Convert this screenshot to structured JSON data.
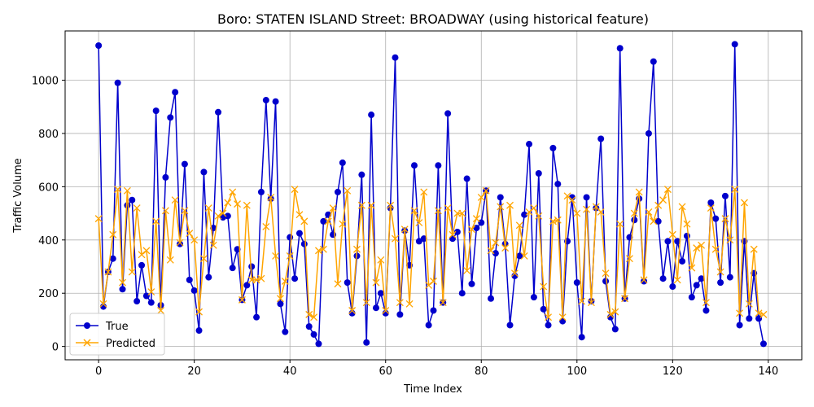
{
  "chart_data": {
    "type": "line",
    "title": "Boro: STATEN ISLAND Street: BROADWAY (using historical feature)",
    "xlabel": "Time Index",
    "ylabel": "Traffic Volume",
    "xlim": [
      -7,
      147
    ],
    "ylim": [
      -50,
      1185
    ],
    "xticks": [
      0,
      20,
      40,
      60,
      80,
      100,
      120,
      140
    ],
    "yticks": [
      0,
      200,
      400,
      600,
      800,
      1000
    ],
    "grid": true,
    "legend_position": "lower-left",
    "series": [
      {
        "name": "True",
        "color": "#0000cc",
        "marker": "circle",
        "values": [
          1130,
          150,
          280,
          330,
          990,
          215,
          530,
          550,
          170,
          305,
          190,
          165,
          885,
          155,
          635,
          860,
          955,
          385,
          685,
          250,
          210,
          60,
          655,
          260,
          445,
          880,
          485,
          490,
          295,
          365,
          175,
          230,
          300,
          110,
          580,
          925,
          555,
          920,
          160,
          55,
          410,
          255,
          425,
          385,
          75,
          45,
          10,
          470,
          495,
          420,
          580,
          690,
          240,
          125,
          340,
          645,
          15,
          870,
          145,
          200,
          125,
          520,
          1085,
          120,
          435,
          305,
          680,
          395,
          405,
          80,
          135,
          680,
          165,
          875,
          405,
          430,
          200,
          630,
          235,
          445,
          465,
          585,
          180,
          350,
          560,
          385,
          80,
          265,
          340,
          495,
          760,
          185,
          650,
          140,
          80,
          745,
          610,
          95,
          395,
          560,
          240,
          35,
          560,
          170,
          520,
          780,
          245,
          110,
          65,
          1120,
          180,
          410,
          475,
          555,
          245,
          800,
          1070,
          470,
          255,
          395,
          225,
          395,
          320,
          415,
          185,
          230,
          255,
          135,
          540,
          480,
          240,
          565,
          260,
          1135,
          80,
          395,
          105,
          275,
          105,
          10
        ]
      },
      {
        "name": "Predicted",
        "color": "#ffa500",
        "marker": "x",
        "values": [
          480,
          160,
          280,
          420,
          590,
          240,
          585,
          280,
          520,
          345,
          360,
          205,
          470,
          135,
          510,
          325,
          550,
          390,
          510,
          425,
          400,
          130,
          330,
          520,
          380,
          490,
          500,
          540,
          580,
          535,
          175,
          530,
          250,
          250,
          255,
          450,
          560,
          340,
          180,
          245,
          340,
          590,
          495,
          470,
          120,
          110,
          360,
          365,
          470,
          520,
          235,
          460,
          585,
          135,
          365,
          530,
          165,
          530,
          240,
          325,
          135,
          530,
          405,
          165,
          440,
          160,
          510,
          465,
          580,
          230,
          245,
          510,
          165,
          520,
          420,
          500,
          500,
          285,
          440,
          480,
          560,
          585,
          360,
          390,
          525,
          370,
          530,
          275,
          455,
          340,
          505,
          520,
          490,
          225,
          110,
          470,
          475,
          110,
          565,
          550,
          500,
          170,
          515,
          165,
          525,
          505,
          275,
          120,
          130,
          460,
          180,
          330,
          500,
          580,
          250,
          505,
          470,
          530,
          550,
          590,
          420,
          250,
          525,
          460,
          295,
          370,
          380,
          165,
          520,
          365,
          280,
          480,
          400,
          590,
          125,
          540,
          160,
          365,
          125,
          120
        ]
      }
    ]
  }
}
